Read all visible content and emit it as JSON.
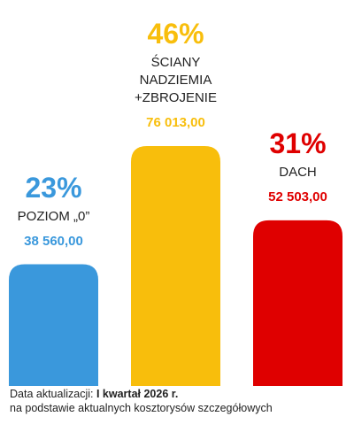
{
  "chart_data": {
    "type": "bar",
    "categories": [
      "POZIOM „0”",
      "ŚCIANY NADZIEMIA +ZBROJENIE",
      "DACH"
    ],
    "values": [
      38560.0,
      76013.0,
      52503.0
    ],
    "value_labels": [
      "38 560,00",
      "76 013,00",
      "52 503,00"
    ],
    "percent_labels": [
      "23%",
      "46%",
      "31%"
    ],
    "label_lines": [
      [
        "POZIOM „0”"
      ],
      [
        "ŚCIANY",
        "NADZIEMIA",
        "+ZBROJENIE"
      ],
      [
        "DACH"
      ]
    ],
    "colors": [
      "#3a98dc",
      "#f8be0c",
      "#df0000"
    ],
    "ylim": [
      0,
      100000
    ],
    "grid": false
  },
  "footer": {
    "prefix": "Data aktualizacji: ",
    "period": "I kwartał 2026 r.",
    "note": "na podstawie aktualnych kosztorysów szczegółowych"
  }
}
